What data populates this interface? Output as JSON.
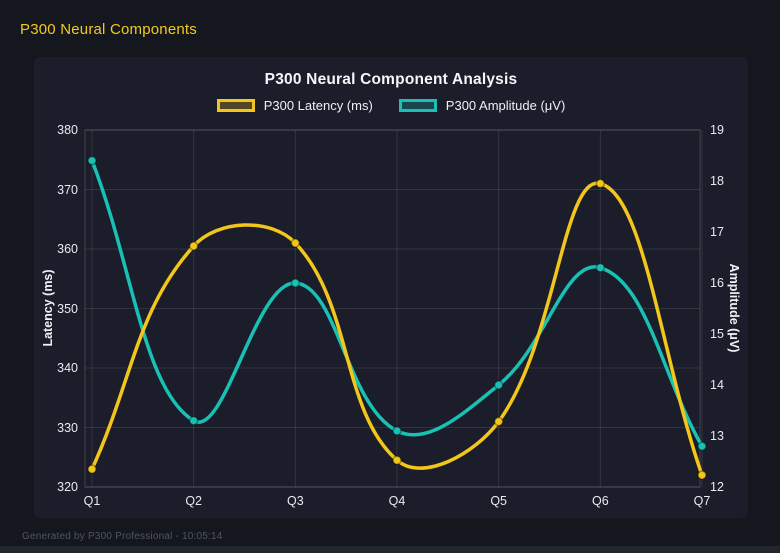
{
  "page": {
    "header": "P300 Neural Components",
    "footer": "Generated by P300 Professional - 10:05:14"
  },
  "chart_data": {
    "type": "line",
    "title": "P300 Neural Component Analysis",
    "categories": [
      "Q1",
      "Q2",
      "Q3",
      "Q4",
      "Q5",
      "Q6",
      "Q7"
    ],
    "series": [
      {
        "name": "P300 Latency (ms)",
        "axis": "left",
        "color": "#f3c61b",
        "values": [
          323,
          360.5,
          361,
          324.5,
          331,
          371,
          322
        ]
      },
      {
        "name": "P300 Amplitude (μV)",
        "axis": "right",
        "color": "#19c0b4",
        "values": [
          18.4,
          13.3,
          16,
          13.1,
          14,
          16.3,
          12.8
        ]
      }
    ],
    "left_axis": {
      "label": "Latency (ms)",
      "min": 320,
      "max": 380,
      "step": 10
    },
    "right_axis": {
      "label": "Amplitude (μV)",
      "min": 12,
      "max": 19,
      "step": 1
    },
    "grid": true,
    "legend_position": "top",
    "line_tension": 0.4,
    "colors": {
      "page_background": "#15171f",
      "card_background": "#1b1d2a",
      "grid_line": "rgba(255,255,255,0.10)",
      "plot_border": "rgba(255,255,255,0.16)",
      "tick_text": "#e8eaf0",
      "header_accent": "#f2c91d"
    }
  }
}
